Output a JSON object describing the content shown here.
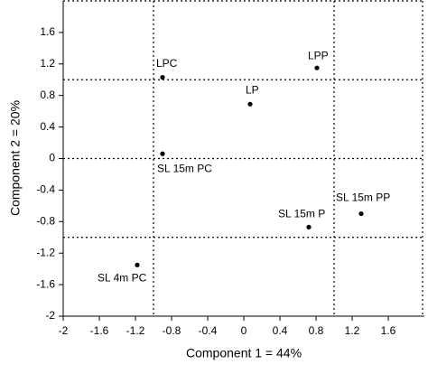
{
  "chart_data": {
    "type": "scatter",
    "x_label": "Component 1 = 44%",
    "y_label": "Component 2 = 20%",
    "labels": [
      "LPC",
      "LPP",
      "LP",
      "SL 15m PC",
      "SL 15m PP",
      "SL 15m P",
      "SL 4m PC"
    ],
    "x": [
      -0.9,
      0.81,
      0.07,
      -0.9,
      1.3,
      0.72,
      -1.18
    ],
    "values": [
      1.03,
      1.15,
      0.69,
      0.06,
      -0.7,
      -0.87,
      -1.35
    ],
    "color": "#000000",
    "xlim": [
      -2,
      2
    ],
    "ylim": [
      -2,
      2
    ],
    "xticks": [
      -2,
      -1.6,
      -1.2,
      -0.8,
      -0.4,
      0,
      0.4,
      0.8,
      1.2,
      1.6
    ],
    "yticks": [
      -2,
      -1.6,
      -1.2,
      -0.8,
      -0.4,
      0,
      0.4,
      0.8,
      1.2,
      1.6
    ],
    "x_reference_lines": [
      -1,
      1
    ],
    "y_reference_lines": [
      -1,
      0,
      1
    ]
  }
}
